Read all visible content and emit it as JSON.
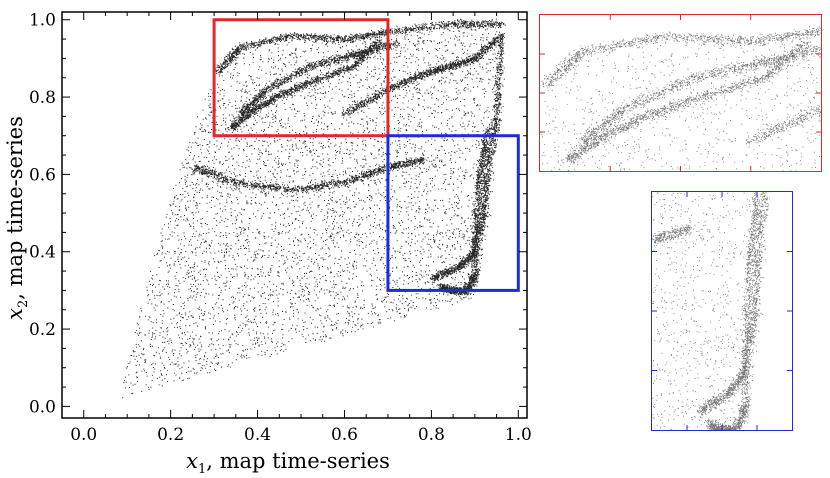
{
  "chart_data": [
    {
      "type": "scatter",
      "panel": "main",
      "xlabel": "x1, map time-series",
      "xlabel_parts": {
        "var": "x",
        "sub": "1",
        "rest": ", map time-series"
      },
      "ylabel": "x2, map time-series",
      "ylabel_parts": {
        "var": "x",
        "sub": "2",
        "rest": ", map time-series"
      },
      "xlim": [
        -0.05,
        1.02
      ],
      "ylim": [
        -0.03,
        1.02
      ],
      "xticks": [
        0.0,
        0.2,
        0.4,
        0.6,
        0.8,
        1.0
      ],
      "xtick_labels": [
        "0.0",
        "0.2",
        "0.4",
        "0.6",
        "0.8",
        "1.0"
      ],
      "yticks": [
        0.0,
        0.2,
        0.4,
        0.6,
        0.8,
        1.0
      ],
      "ytick_labels": [
        "0.0",
        "0.2",
        "0.4",
        "0.6",
        "0.8",
        "1.0"
      ],
      "attractor_outline": [
        [
          0.08,
          0.02
        ],
        [
          0.9,
          0.28
        ],
        [
          0.94,
          0.52
        ],
        [
          0.97,
          1.0
        ],
        [
          0.35,
          0.93
        ],
        [
          0.31,
          0.89
        ],
        [
          0.26,
          0.75
        ],
        [
          0.2,
          0.55
        ],
        [
          0.14,
          0.3
        ]
      ],
      "dense_filaments": [
        [
          [
            0.31,
            0.87
          ],
          [
            0.36,
            0.93
          ],
          [
            0.48,
            0.96
          ],
          [
            0.6,
            0.95
          ],
          [
            0.7,
            0.97
          ],
          [
            0.85,
            0.99
          ],
          [
            0.96,
            0.99
          ]
        ],
        [
          [
            0.36,
            0.76
          ],
          [
            0.42,
            0.82
          ],
          [
            0.52,
            0.88
          ],
          [
            0.62,
            0.91
          ],
          [
            0.72,
            0.94
          ]
        ],
        [
          [
            0.34,
            0.72
          ],
          [
            0.38,
            0.76
          ],
          [
            0.44,
            0.8
          ],
          [
            0.52,
            0.84
          ],
          [
            0.62,
            0.88
          ],
          [
            0.68,
            0.95
          ]
        ],
        [
          [
            0.8,
            0.33
          ],
          [
            0.86,
            0.36
          ],
          [
            0.9,
            0.4
          ],
          [
            0.92,
            0.5
          ],
          [
            0.93,
            0.62
          ],
          [
            0.95,
            0.75
          ],
          [
            0.96,
            0.95
          ]
        ],
        [
          [
            0.82,
            0.31
          ],
          [
            0.85,
            0.3
          ],
          [
            0.88,
            0.3
          ],
          [
            0.9,
            0.34
          ],
          [
            0.9,
            0.46
          ],
          [
            0.91,
            0.6
          ],
          [
            0.93,
            0.72
          ]
        ],
        [
          [
            0.6,
            0.76
          ],
          [
            0.7,
            0.82
          ],
          [
            0.78,
            0.86
          ],
          [
            0.84,
            0.88
          ],
          [
            0.9,
            0.9
          ],
          [
            0.96,
            0.96
          ]
        ],
        [
          [
            0.25,
            0.62
          ],
          [
            0.35,
            0.58
          ],
          [
            0.48,
            0.56
          ],
          [
            0.6,
            0.58
          ],
          [
            0.7,
            0.62
          ],
          [
            0.78,
            0.64
          ]
        ]
      ],
      "zoom_boxes": [
        {
          "name": "upper-left region",
          "x": [
            0.3,
            0.7
          ],
          "y": [
            0.7,
            1.0
          ],
          "color": "#e0282a"
        },
        {
          "name": "right region",
          "x": [
            0.7,
            1.0
          ],
          "y": [
            0.3,
            0.7
          ],
          "color": "#1f2bd6"
        }
      ]
    },
    {
      "type": "scatter",
      "panel": "zoom-red",
      "xlim": [
        0.3,
        0.7
      ],
      "ylim": [
        0.7,
        1.0
      ],
      "frame_color": "#e0282a"
    },
    {
      "type": "scatter",
      "panel": "zoom-blue",
      "xlim": [
        0.7,
        1.0
      ],
      "ylim": [
        0.3,
        0.7
      ],
      "frame_color": "#1f2bd6"
    }
  ]
}
